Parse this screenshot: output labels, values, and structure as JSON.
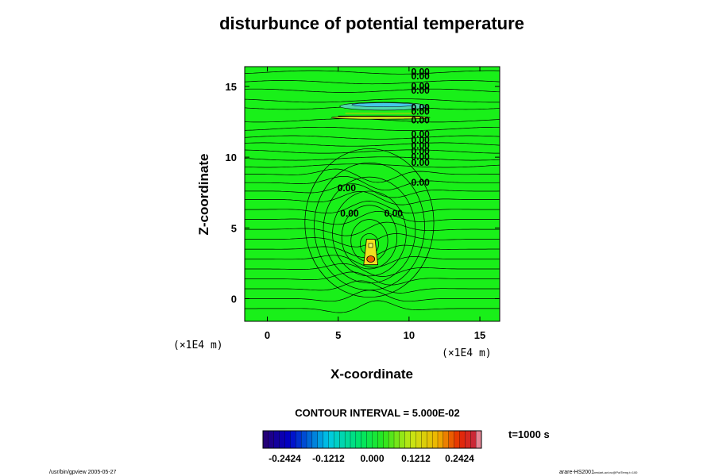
{
  "chart_data": {
    "type": "contour",
    "title": "disturbunce of potential temperature",
    "xlabel": "X-coordinate",
    "ylabel": "Z-coordinate",
    "x_unit": "(×1E4 m)",
    "y_unit": "(×1E4 m)",
    "xlim": [
      -1.6,
      16.4
    ],
    "ylim": [
      -1.6,
      16.4
    ],
    "x_ticks": [
      0,
      5,
      10,
      15
    ],
    "y_ticks": [
      0,
      5,
      10,
      15
    ],
    "contour_interval_text": "CONTOUR INTERVAL = 5.000E-02",
    "time_text": "t=1000 s",
    "colorbar": {
      "range": [
        -0.303,
        0.303
      ],
      "tick_values": [
        -0.2424,
        -0.1212,
        0.0,
        0.1212,
        0.2424
      ],
      "tick_labels": [
        "-0.2424",
        "-0.1212",
        "0.000",
        "0.1212",
        "0.2424"
      ]
    },
    "contour_labels": [
      {
        "text": "0.00",
        "x": 10.8,
        "y": 15.8
      },
      {
        "text": "0.00",
        "x": 10.8,
        "y": 15.5
      },
      {
        "text": "0.00",
        "x": 10.8,
        "y": 14.8
      },
      {
        "text": "0.00",
        "x": 10.8,
        "y": 14.5
      },
      {
        "text": "0.00",
        "x": 10.8,
        "y": 13.3
      },
      {
        "text": "0.00",
        "x": 10.8,
        "y": 13.0
      },
      {
        "text": "0.00",
        "x": 10.8,
        "y": 12.4
      },
      {
        "text": "0.00",
        "x": 10.8,
        "y": 11.4
      },
      {
        "text": "0.00",
        "x": 10.8,
        "y": 11.0
      },
      {
        "text": "0.00",
        "x": 10.8,
        "y": 10.6
      },
      {
        "text": "0.00",
        "x": 10.8,
        "y": 10.2
      },
      {
        "text": "0.00",
        "x": 10.8,
        "y": 9.8
      },
      {
        "text": "0.00",
        "x": 10.8,
        "y": 9.4
      },
      {
        "text": "0.00",
        "x": 10.8,
        "y": 8.0
      },
      {
        "text": "0.00",
        "x": 5.6,
        "y": 7.6
      },
      {
        "text": "0.00",
        "x": 5.8,
        "y": 5.8
      },
      {
        "text": "0.00",
        "x": 8.9,
        "y": 5.8
      }
    ]
  },
  "footer": {
    "left": "/usr/bin/gpview 2005-05-27",
    "right_main": "arare-HS2001",
    "right_sub": "restart-avt.nc@PotTemp,t=100"
  }
}
